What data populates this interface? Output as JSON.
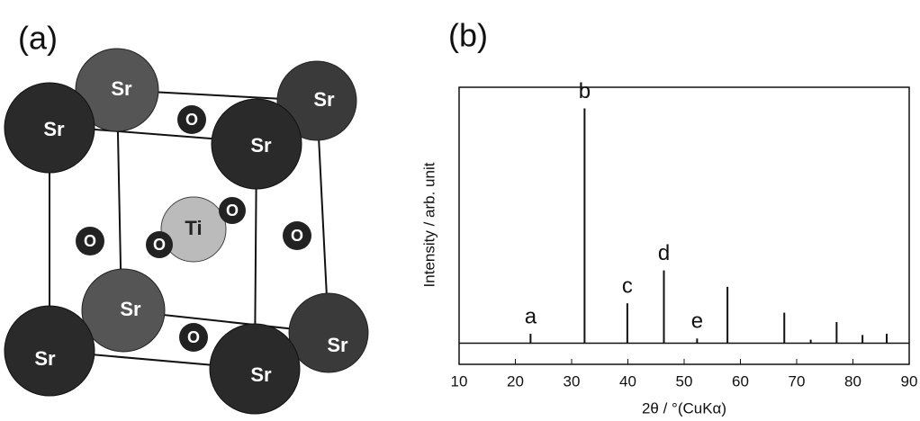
{
  "panel_a": {
    "label": "(a)",
    "atoms": [
      "Sr",
      "Sr",
      "O",
      "Sr",
      "Sr",
      "O",
      "Ti",
      "O",
      "O",
      "O",
      "Sr",
      "Sr",
      "O",
      "Sr",
      "Sr"
    ]
  },
  "chart_data": {
    "type": "stick",
    "panel_label": "(b)",
    "x_label": "2θ / °(CuKα)",
    "y_label": "Intensity / arb. unit",
    "x": [
      22.7,
      32.3,
      39.9,
      46.4,
      52.3,
      57.7,
      67.8,
      72.5,
      77.1,
      81.7,
      86.0
    ],
    "values": [
      4,
      100,
      17,
      31,
      2,
      24,
      13,
      1.5,
      9,
      3.5,
      4
    ],
    "peak_labels": [
      "a",
      "b",
      "c",
      "d",
      "e",
      null,
      null,
      null,
      null,
      null,
      null
    ],
    "color": "#111111",
    "xlim": [
      10,
      90
    ],
    "xticks": [
      10,
      20,
      30,
      40,
      50,
      60,
      70,
      80,
      90
    ],
    "ylim": [
      -9,
      109
    ]
  }
}
